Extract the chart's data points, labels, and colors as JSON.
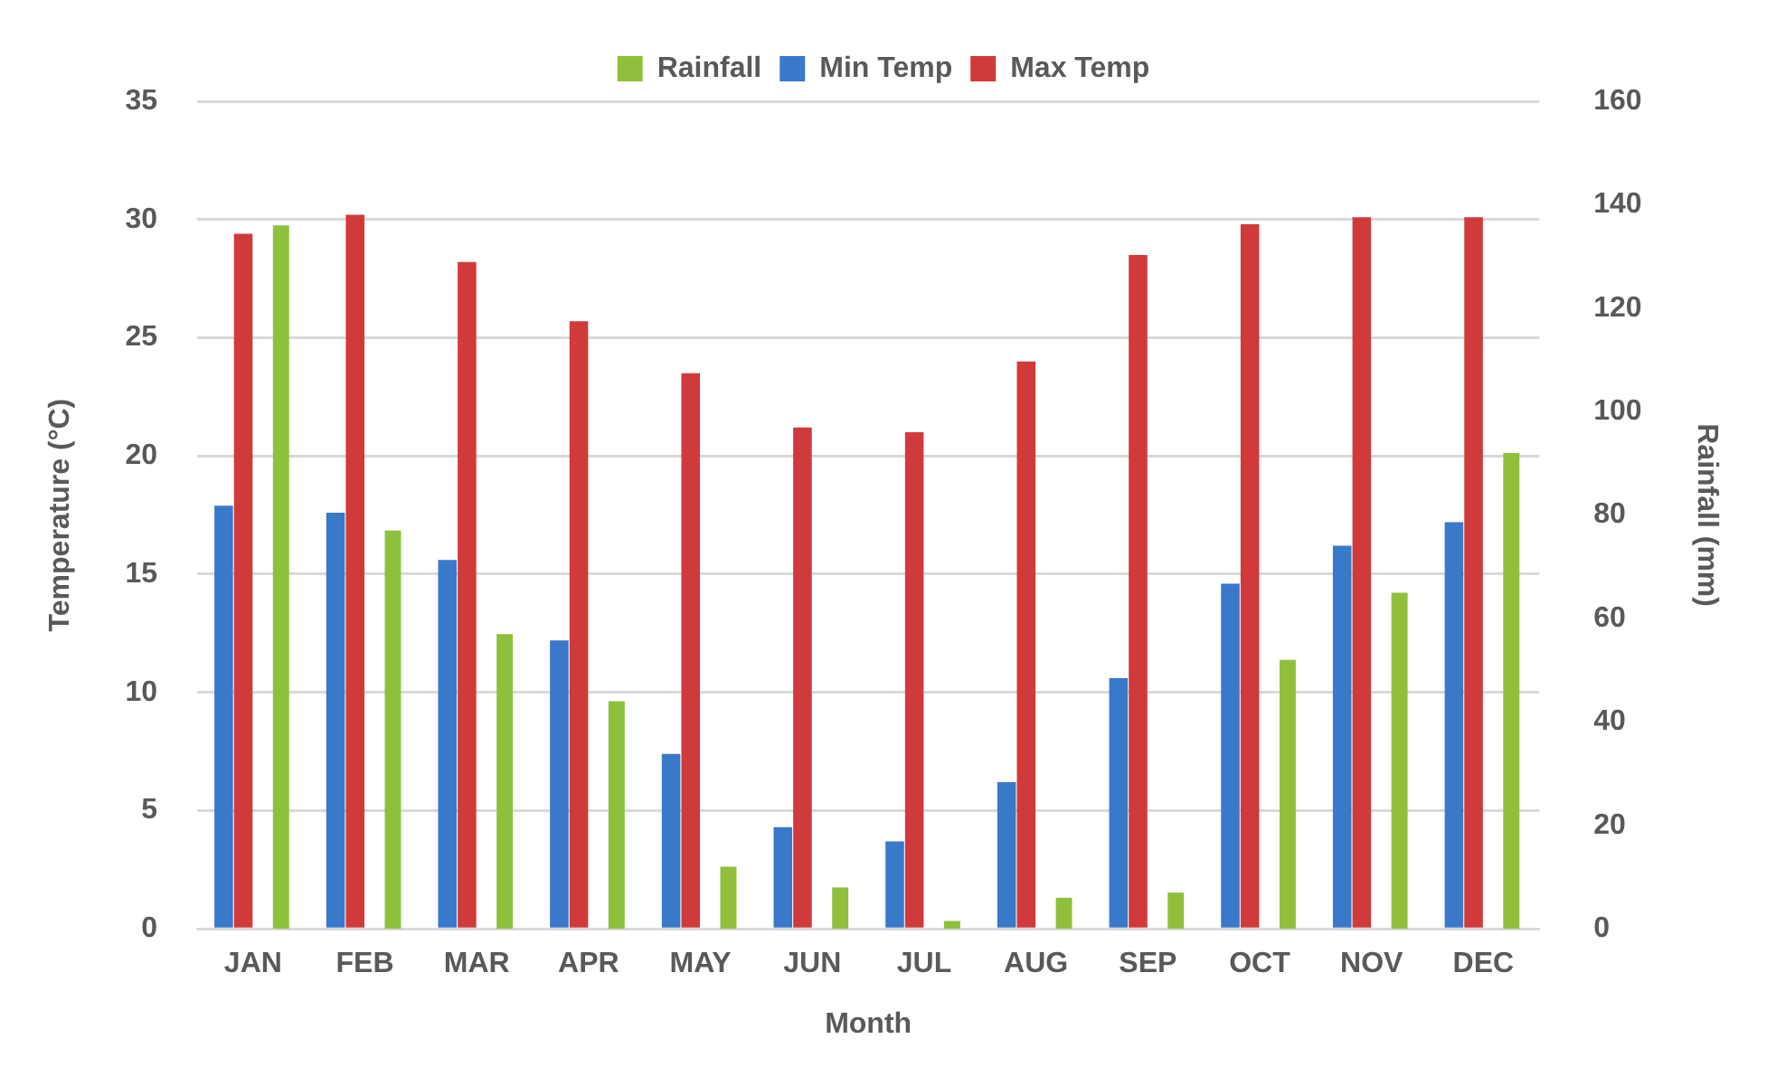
{
  "chart_data": {
    "type": "bar",
    "xlabel": "Month",
    "ylabel": "Temperature (°C)",
    "y2label": "Rainfall (mm)",
    "categories": [
      "JAN",
      "FEB",
      "MAR",
      "APR",
      "MAY",
      "JUN",
      "JUL",
      "AUG",
      "SEP",
      "OCT",
      "NOV",
      "DEC"
    ],
    "series": [
      {
        "name": "Min Temp",
        "color": "#3a78c9",
        "values": [
          17.9,
          17.6,
          15.6,
          12.2,
          7.4,
          4.3,
          3.7,
          6.2,
          10.6,
          14.6,
          16.2,
          17.2
        ]
      },
      {
        "name": "Max Temp",
        "color": "#d03a3a",
        "values": [
          29.4,
          30.2,
          28.2,
          25.7,
          23.5,
          21.2,
          21.0,
          24.0,
          28.5,
          29.8,
          30.1,
          30.1
        ]
      },
      {
        "name": "Rainfall",
        "color": "#8fc03c",
        "axis": "y2",
        "values": [
          136,
          77,
          57,
          44,
          12,
          8,
          1.5,
          6,
          7,
          52,
          65,
          92
        ]
      }
    ],
    "ylim": [
      0,
      35
    ],
    "yticks": [
      0,
      5,
      10,
      15,
      20,
      25,
      30,
      35
    ],
    "y2lim": [
      0,
      160
    ],
    "y2ticks": [
      0,
      20,
      40,
      60,
      80,
      100,
      120,
      140,
      160
    ],
    "grid": "y",
    "legend": "top"
  }
}
